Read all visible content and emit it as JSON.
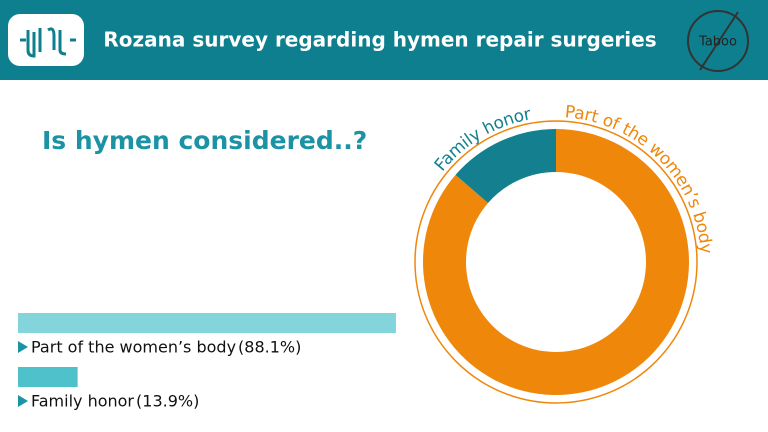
{
  "header": {
    "title": "Rozana survey regarding hymen repair surgeries",
    "badge": "Taboo"
  },
  "chart_data": {
    "type": "donut",
    "title": "Is hymen considered..?",
    "categories": [
      "Part of the women’s body",
      "Family honor"
    ],
    "values": [
      88.1,
      13.9
    ],
    "value_labels": [
      "(88.1%)",
      "(13.9%)"
    ],
    "colors": [
      "#ef870b",
      "#137f8f"
    ],
    "bar_colors": [
      "#84d4dc",
      "#4fc1ca"
    ]
  }
}
